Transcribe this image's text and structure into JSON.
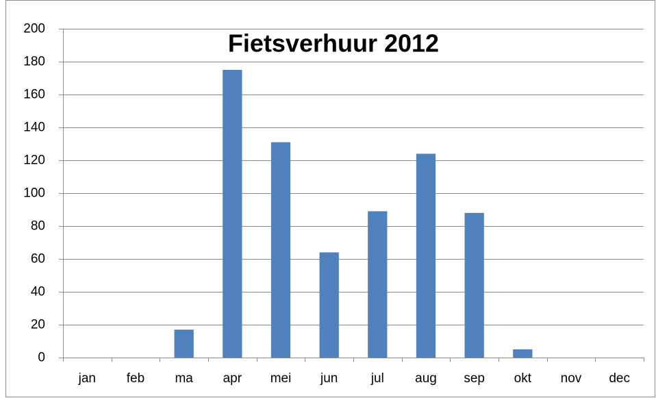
{
  "chart_data": {
    "type": "bar",
    "title": "Fietsverhuur 2012",
    "categories": [
      "jan",
      "feb",
      "ma",
      "apr",
      "mei",
      "jun",
      "jul",
      "aug",
      "sep",
      "okt",
      "nov",
      "dec"
    ],
    "values": [
      0,
      0,
      17,
      175,
      131,
      64,
      89,
      124,
      88,
      5,
      0,
      0
    ],
    "color": "#4f81bd",
    "ylim": [
      0,
      200
    ],
    "yticks": [
      0,
      20,
      40,
      60,
      80,
      100,
      120,
      140,
      160,
      180,
      200
    ],
    "grid": true
  }
}
